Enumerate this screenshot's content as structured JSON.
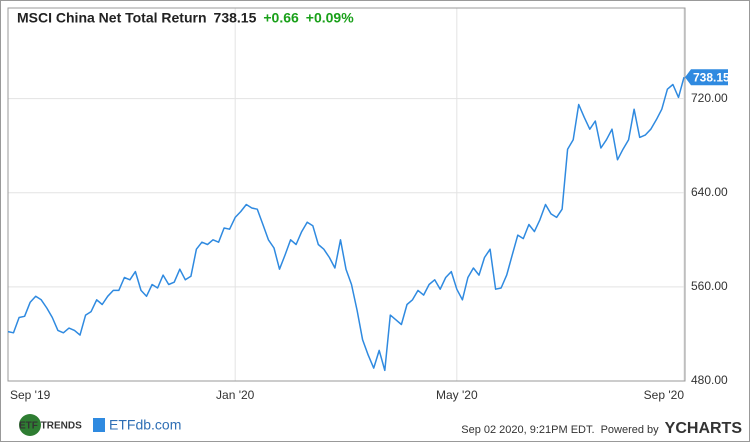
{
  "chart_data": {
    "type": "line",
    "title": "MSCI China Net Total Return",
    "change": "+0.66",
    "change_pct": "+0.09%",
    "color": "#2f8ae0",
    "change_color": "#1aa01a",
    "values": [
      522,
      521,
      534,
      535,
      547,
      552,
      549,
      542,
      534,
      523,
      521,
      525,
      523,
      519,
      536,
      539,
      549,
      545,
      552,
      557,
      557,
      568,
      566,
      573,
      557,
      552,
      562,
      559,
      570,
      562,
      564,
      575,
      566,
      569,
      592,
      598,
      596,
      600,
      598,
      610,
      609,
      619,
      624,
      630,
      627,
      626,
      613,
      600,
      593,
      575,
      587,
      600,
      596,
      607,
      615,
      612,
      596,
      592,
      585,
      576,
      600,
      575,
      562,
      540,
      515,
      502,
      491,
      506,
      489,
      536,
      532,
      528,
      545,
      549,
      557,
      553,
      562,
      566,
      558,
      568,
      573,
      558,
      549,
      568,
      576,
      570,
      585,
      592,
      558,
      559,
      570,
      587,
      604,
      601,
      613,
      607,
      617,
      630,
      622,
      619,
      626,
      677,
      685,
      715,
      704,
      694,
      701,
      678,
      685,
      694,
      668,
      677,
      685,
      711,
      687,
      689,
      694,
      702,
      711,
      728,
      732,
      721,
      738.15
    ],
    "xlim": [
      0,
      122
    ],
    "xticks": [
      {
        "value": 0,
        "label": "Sep '19"
      },
      {
        "value": 41,
        "label": "Jan '20"
      },
      {
        "value": 81,
        "label": "May '20"
      },
      {
        "value": 122,
        "label": "Sep '20"
      }
    ],
    "ylim": [
      480,
      797
    ],
    "yticks": [
      {
        "value": 480,
        "label": "480.00"
      },
      {
        "value": 560,
        "label": "560.00"
      },
      {
        "value": 640,
        "label": "640.00"
      },
      {
        "value": 720,
        "label": "720.00"
      }
    ],
    "grid": true
  },
  "footer": {
    "logo_1": "ETF TRENDS",
    "logo_2": "ETFdb.com",
    "timestamp": "Sep 02 2020, 9:21PM EDT.",
    "powered_by": "Powered by",
    "brand": "YCHARTS"
  }
}
